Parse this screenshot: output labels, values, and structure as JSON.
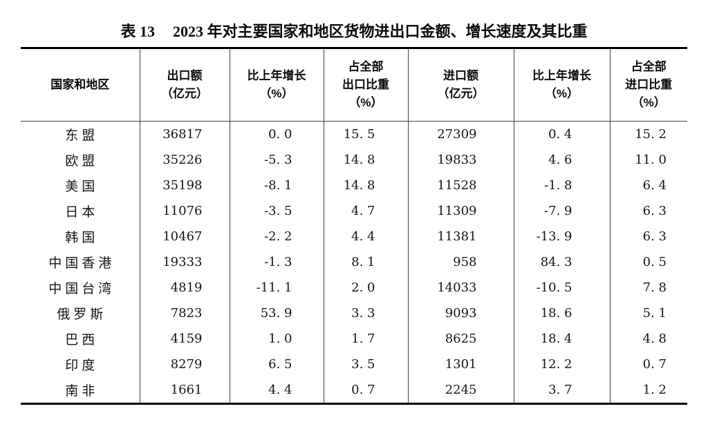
{
  "title": {
    "prefix": "表 13",
    "text": "2023 年对主要国家和地区货物进出口金额、增长速度及其比重"
  },
  "table": {
    "columns": [
      {
        "lines": [
          "国家和地区"
        ]
      },
      {
        "lines": [
          "出口额",
          "（亿元）"
        ]
      },
      {
        "lines": [
          "比上年增长",
          "（%）"
        ]
      },
      {
        "lines": [
          "占全部",
          "出口比重",
          "（%）"
        ]
      },
      {
        "lines": [
          "进口额",
          "（亿元）"
        ]
      },
      {
        "lines": [
          "比上年增长",
          "（%）"
        ]
      },
      {
        "lines": [
          "占全部",
          "进口比重",
          "（%）"
        ]
      }
    ],
    "rows": [
      [
        "东盟",
        "36817",
        "0. 0",
        "15. 5",
        "27309",
        "0. 4",
        "15. 2"
      ],
      [
        "欧盟",
        "35226",
        "-5. 3",
        "14. 8",
        "19833",
        "4. 6",
        "11. 0"
      ],
      [
        "美国",
        "35198",
        "-8. 1",
        "14. 8",
        "11528",
        "-1. 8",
        "6. 4"
      ],
      [
        "日本",
        "11076",
        "-3. 5",
        "4. 7",
        "11309",
        "-7. 9",
        "6. 3"
      ],
      [
        "韩国",
        "10467",
        "-2. 2",
        "4. 4",
        "11381",
        "-13. 9",
        "6. 3"
      ],
      [
        "中国香港",
        "19333",
        "-1. 3",
        "8. 1",
        "958",
        "84. 3",
        "0. 5"
      ],
      [
        "中国台湾",
        "4819",
        "-11. 1",
        "2. 0",
        "14033",
        "-10. 5",
        "7. 8"
      ],
      [
        "俄罗斯",
        "7823",
        "53. 9",
        "3. 3",
        "9093",
        "18. 6",
        "5. 1"
      ],
      [
        "巴西",
        "4159",
        "1. 0",
        "1. 7",
        "8625",
        "18. 4",
        "4. 8"
      ],
      [
        "印度",
        "8279",
        "6. 5",
        "3. 5",
        "1301",
        "12. 2",
        "0. 7"
      ],
      [
        "南非",
        "1661",
        "4. 4",
        "0. 7",
        "2245",
        "3. 7",
        "1. 2"
      ]
    ],
    "border_color": "#000000",
    "grid_color": "#3f3f3f"
  },
  "chart_data": {
    "type": "table",
    "title": "表 13 2023 年对主要国家和地区货物进出口金额、增长速度及其比重",
    "columns": [
      "国家和地区",
      "出口额（亿元）",
      "比上年增长（%）",
      "占全部出口比重（%）",
      "进口额（亿元）",
      "比上年增长（%）",
      "占全部进口比重（%）"
    ],
    "rows": [
      [
        "东盟",
        36817,
        0.0,
        15.5,
        27309,
        0.4,
        15.2
      ],
      [
        "欧盟",
        35226,
        -5.3,
        14.8,
        19833,
        4.6,
        11.0
      ],
      [
        "美国",
        35198,
        -8.1,
        14.8,
        11528,
        -1.8,
        6.4
      ],
      [
        "日本",
        11076,
        -3.5,
        4.7,
        11309,
        -7.9,
        6.3
      ],
      [
        "韩国",
        10467,
        -2.2,
        4.4,
        11381,
        -13.9,
        6.3
      ],
      [
        "中国香港",
        19333,
        -1.3,
        8.1,
        958,
        84.3,
        0.5
      ],
      [
        "中国台湾",
        4819,
        -11.1,
        2.0,
        14033,
        -10.5,
        7.8
      ],
      [
        "俄罗斯",
        7823,
        53.9,
        3.3,
        9093,
        18.6,
        5.1
      ],
      [
        "巴西",
        4159,
        1.0,
        1.7,
        8625,
        18.4,
        4.8
      ],
      [
        "印度",
        8279,
        6.5,
        3.5,
        1301,
        12.2,
        0.7
      ],
      [
        "南非",
        1661,
        4.4,
        0.7,
        2245,
        3.7,
        1.2
      ]
    ]
  }
}
